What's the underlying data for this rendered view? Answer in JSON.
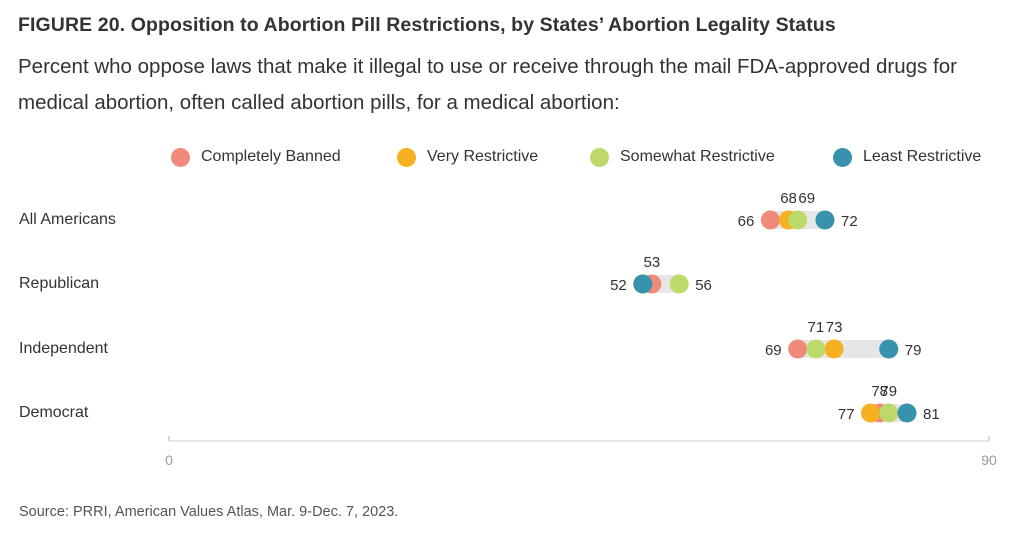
{
  "title": "FIGURE 20. Opposition to Abortion Pill Restrictions, by States’ Abortion Legality Status",
  "subtitle": "Percent who oppose laws that make it illegal to use or receive through the mail FDA-approved drugs for medical abortion, often called abortion pills, for a medical abortion:",
  "source": "Source: PRRI, American Values Atlas, Mar. 9-Dec. 7, 2023.",
  "chart_data": {
    "type": "dot",
    "title": "FIGURE 20. Opposition to Abortion Pill Restrictions, by States’ Abortion Legality Status",
    "xlim": [
      0,
      90
    ],
    "x_tick_labels": [
      "0",
      "90"
    ],
    "legend_position": "top",
    "categories": [
      "All Americans",
      "Republican",
      "Independent",
      "Democrat"
    ],
    "series": [
      {
        "name": "Completely Banned",
        "color": "#f08a7a",
        "values": [
          66,
          53,
          69,
          78
        ]
      },
      {
        "name": "Very Restrictive",
        "color": "#f6b020",
        "values": [
          68,
          52,
          73,
          77
        ]
      },
      {
        "name": "Somewhat Restrictive",
        "color": "#bcd96a",
        "values": [
          69,
          56,
          71,
          79
        ]
      },
      {
        "name": "Least Restrictive",
        "color": "#3792ad",
        "values": [
          72,
          52,
          79,
          81
        ]
      }
    ],
    "labels": [
      {
        "row": 0,
        "text": "66",
        "pos": "left",
        "x": 66
      },
      {
        "row": 0,
        "text": "68",
        "pos": "above",
        "x": 68
      },
      {
        "row": 0,
        "text": "69",
        "pos": "above",
        "x": 70
      },
      {
        "row": 0,
        "text": "72",
        "pos": "right",
        "x": 72
      },
      {
        "row": 1,
        "text": "52",
        "pos": "left",
        "x": 52
      },
      {
        "row": 1,
        "text": "53",
        "pos": "above",
        "x": 53
      },
      {
        "row": 1,
        "text": "56",
        "pos": "right",
        "x": 56
      },
      {
        "row": 2,
        "text": "69",
        "pos": "left",
        "x": 69
      },
      {
        "row": 2,
        "text": "71",
        "pos": "above",
        "x": 71
      },
      {
        "row": 2,
        "text": "73",
        "pos": "above",
        "x": 73
      },
      {
        "row": 2,
        "text": "79",
        "pos": "right",
        "x": 79
      },
      {
        "row": 3,
        "text": "77",
        "pos": "left",
        "x": 77
      },
      {
        "row": 3,
        "text": "78",
        "pos": "above",
        "x": 78
      },
      {
        "row": 3,
        "text": "79",
        "pos": "above",
        "x": 79
      },
      {
        "row": 3,
        "text": "81",
        "pos": "right",
        "x": 81
      }
    ]
  }
}
